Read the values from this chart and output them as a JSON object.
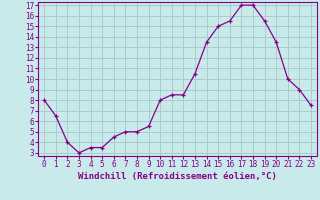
{
  "x": [
    0,
    1,
    2,
    3,
    4,
    5,
    6,
    7,
    8,
    9,
    10,
    11,
    12,
    13,
    14,
    15,
    16,
    17,
    18,
    19,
    20,
    21,
    22,
    23
  ],
  "y": [
    8,
    6.5,
    4,
    3,
    3.5,
    3.5,
    4.5,
    5,
    5,
    5.5,
    8,
    8.5,
    8.5,
    10.5,
    13.5,
    15,
    15.5,
    17,
    17,
    15.5,
    13.5,
    10,
    9,
    7.5
  ],
  "line_color": "#880088",
  "marker": "+",
  "bg_color": "#c8eaea",
  "grid_color": "#aacccc",
  "xlabel": "Windchill (Refroidissement éolien,°C)",
  "xlim": [
    -0.5,
    23.5
  ],
  "ylim": [
    2.7,
    17.3
  ],
  "yticks": [
    3,
    4,
    5,
    6,
    7,
    8,
    9,
    10,
    11,
    12,
    13,
    14,
    15,
    16,
    17
  ],
  "xticks": [
    0,
    1,
    2,
    3,
    4,
    5,
    6,
    7,
    8,
    9,
    10,
    11,
    12,
    13,
    14,
    15,
    16,
    17,
    18,
    19,
    20,
    21,
    22,
    23
  ],
  "axis_color": "#880088",
  "tick_fontsize": 5.5,
  "xlabel_fontsize": 6.5,
  "linewidth": 0.9,
  "markersize": 3.5,
  "markeredgewidth": 0.9
}
